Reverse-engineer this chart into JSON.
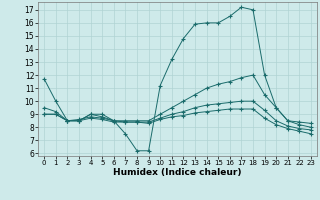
{
  "background_color": "#ceeaea",
  "grid_color": "#b0d4d4",
  "line_color": "#1a6b6b",
  "xlabel": "Humidex (Indice chaleur)",
  "xlim": [
    -0.5,
    23.5
  ],
  "ylim": [
    5.8,
    17.6
  ],
  "yticks": [
    6,
    7,
    8,
    9,
    10,
    11,
    12,
    13,
    14,
    15,
    16,
    17
  ],
  "xticks": [
    0,
    1,
    2,
    3,
    4,
    5,
    6,
    7,
    8,
    9,
    10,
    11,
    12,
    13,
    14,
    15,
    16,
    17,
    18,
    19,
    20,
    21,
    22,
    23
  ],
  "line1_x": [
    0,
    1,
    2,
    3,
    4,
    5,
    6,
    7,
    8,
    9,
    10,
    11,
    12,
    13,
    14,
    15,
    16,
    17,
    18,
    19,
    20,
    21,
    22,
    23
  ],
  "line1_y": [
    11.7,
    10.0,
    8.5,
    8.5,
    9.0,
    9.0,
    8.5,
    7.5,
    6.2,
    6.2,
    11.2,
    13.2,
    14.8,
    15.9,
    16.0,
    16.0,
    16.5,
    17.2,
    17.0,
    12.0,
    9.5,
    8.5,
    8.4,
    8.3
  ],
  "line2_x": [
    0,
    1,
    2,
    3,
    4,
    5,
    6,
    7,
    8,
    9,
    10,
    11,
    12,
    13,
    14,
    15,
    16,
    17,
    18,
    19,
    20,
    21,
    22,
    23
  ],
  "line2_y": [
    9.5,
    9.2,
    8.5,
    8.5,
    9.0,
    8.8,
    8.5,
    8.5,
    8.5,
    8.5,
    9.0,
    9.5,
    10.0,
    10.5,
    11.0,
    11.3,
    11.5,
    11.8,
    12.0,
    10.5,
    9.5,
    8.5,
    8.2,
    8.0
  ],
  "line3_x": [
    0,
    1,
    2,
    3,
    4,
    5,
    6,
    7,
    8,
    9,
    10,
    11,
    12,
    13,
    14,
    15,
    16,
    17,
    18,
    19,
    20,
    21,
    22,
    23
  ],
  "line3_y": [
    9.0,
    9.0,
    8.5,
    8.6,
    8.8,
    8.7,
    8.5,
    8.4,
    8.4,
    8.4,
    8.7,
    9.0,
    9.2,
    9.5,
    9.7,
    9.8,
    9.9,
    10.0,
    10.0,
    9.3,
    8.5,
    8.1,
    7.9,
    7.8
  ],
  "line4_x": [
    0,
    1,
    2,
    3,
    4,
    5,
    6,
    7,
    8,
    9,
    10,
    11,
    12,
    13,
    14,
    15,
    16,
    17,
    18,
    19,
    20,
    21,
    22,
    23
  ],
  "line4_y": [
    9.0,
    9.0,
    8.5,
    8.5,
    8.7,
    8.6,
    8.4,
    8.4,
    8.4,
    8.3,
    8.6,
    8.8,
    8.9,
    9.1,
    9.2,
    9.3,
    9.4,
    9.4,
    9.4,
    8.7,
    8.2,
    7.9,
    7.7,
    7.5
  ]
}
